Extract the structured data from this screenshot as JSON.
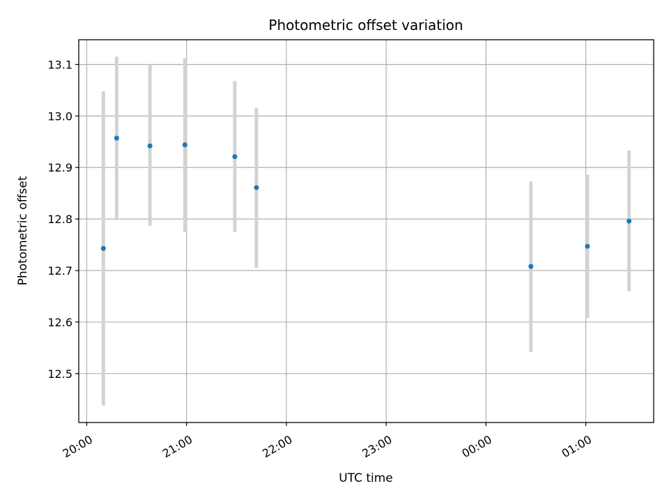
{
  "chart_data": {
    "type": "scatter",
    "title": "Photometric offset variation",
    "xlabel": "UTC time",
    "ylabel": "Photometric offset",
    "x_ticks": [
      "20:00",
      "21:00",
      "22:00",
      "23:00",
      "00:00",
      "01:00"
    ],
    "x_tick_hours": [
      20,
      21,
      22,
      23,
      24,
      25
    ],
    "xlim_hours": [
      19.92,
      25.68
    ],
    "y_ticks": [
      "12.5",
      "12.6",
      "12.7",
      "12.8",
      "12.9",
      "13.0",
      "13.1"
    ],
    "y_tick_values": [
      12.5,
      12.6,
      12.7,
      12.8,
      12.9,
      13.0,
      13.1
    ],
    "ylim": [
      12.405,
      13.148
    ],
    "grid": true,
    "point_color": "#1f77b4",
    "errorbar_color": "#d3d3d3",
    "points": [
      {
        "time": "20:10",
        "y": 12.743,
        "lo": 12.438,
        "hi": 13.048
      },
      {
        "time": "20:18",
        "y": 12.957,
        "lo": 12.798,
        "hi": 13.115
      },
      {
        "time": "20:38",
        "y": 12.942,
        "lo": 12.787,
        "hi": 13.1
      },
      {
        "time": "20:59",
        "y": 12.944,
        "lo": 12.775,
        "hi": 13.112
      },
      {
        "time": "21:29",
        "y": 12.921,
        "lo": 12.775,
        "hi": 13.068
      },
      {
        "time": "21:42",
        "y": 12.861,
        "lo": 12.705,
        "hi": 13.016
      },
      {
        "time": "00:27",
        "y": 12.708,
        "lo": 12.542,
        "hi": 12.873
      },
      {
        "time": "01:01",
        "y": 12.747,
        "lo": 12.608,
        "hi": 12.886
      },
      {
        "time": "01:26",
        "y": 12.796,
        "lo": 12.66,
        "hi": 12.933
      }
    ]
  }
}
